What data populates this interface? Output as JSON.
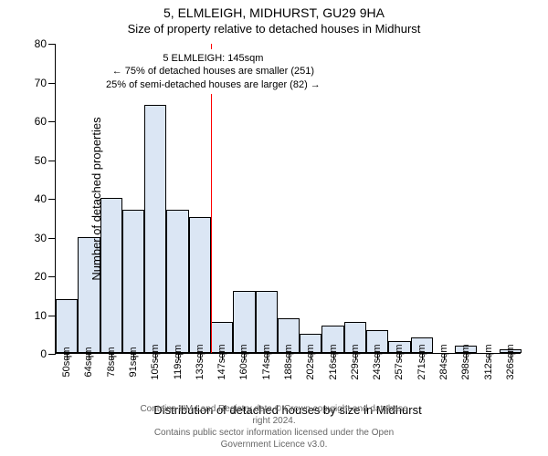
{
  "titles": {
    "main": "5, ELMLEIGH, MIDHURST, GU29 9HA",
    "sub": "Size of property relative to detached houses in Midhurst"
  },
  "chart": {
    "type": "histogram",
    "ylim": [
      0,
      80
    ],
    "ytick_step": 10,
    "yticks": [
      0,
      10,
      20,
      30,
      40,
      50,
      60,
      70,
      80
    ],
    "ylabel": "Number of detached properties",
    "xlabel": "Distribution of detached houses by size in Midhurst",
    "xtick_labels": [
      "50sqm",
      "64sqm",
      "78sqm",
      "91sqm",
      "105sqm",
      "119sqm",
      "133sqm",
      "147sqm",
      "160sqm",
      "174sqm",
      "188sqm",
      "202sqm",
      "216sqm",
      "229sqm",
      "243sqm",
      "257sqm",
      "271sqm",
      "284sqm",
      "298sqm",
      "312sqm",
      "326sqm"
    ],
    "values": [
      14,
      30,
      40,
      37,
      64,
      37,
      35,
      8,
      16,
      16,
      9,
      5,
      7,
      8,
      6,
      3,
      4,
      0,
      2,
      0,
      1
    ],
    "bar_fill": "#dbe6f4",
    "bar_border": "#000000",
    "vline_index_after": 7,
    "vline_color": "#ff0000",
    "background_color": "#ffffff"
  },
  "annotation": {
    "line1": "5 ELMLEIGH: 145sqm",
    "line2": "← 75% of detached houses are smaller (251)",
    "line3": "25% of semi-detached houses are larger (82) →"
  },
  "footer": {
    "line1": "Contains HM Land Registry data © Crown copyright and database right 2024.",
    "line2": "Contains public sector information licensed under the Open Government Licence v3.0."
  }
}
